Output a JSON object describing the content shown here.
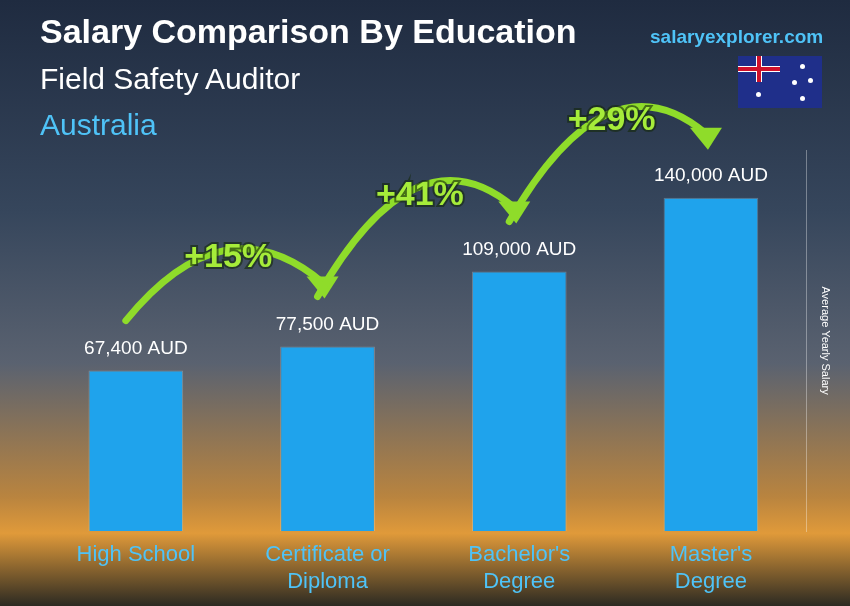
{
  "chart_data": {
    "type": "bar",
    "title": "Salary Comparison By Education",
    "subtitle": "Field Safety Auditor",
    "country": "Australia",
    "source": "salaryexplorer.com",
    "y_label": "Average Yearly Salary",
    "categories": [
      "High School",
      "Certificate or Diploma",
      "Bachelor's Degree",
      "Master's Degree"
    ],
    "values": [
      67400,
      77500,
      109000,
      140000
    ],
    "value_labels": [
      "67,400 AUD",
      "77,500 AUD",
      "109,000 AUD",
      "140,000 AUD"
    ],
    "annotations": [
      "+15%",
      "+41%",
      "+29%"
    ],
    "color": "#1fa3ec",
    "ylim": [
      0,
      160000
    ],
    "yticks": [],
    "grid": false,
    "data_labels": true,
    "tick_labels": "x"
  }
}
